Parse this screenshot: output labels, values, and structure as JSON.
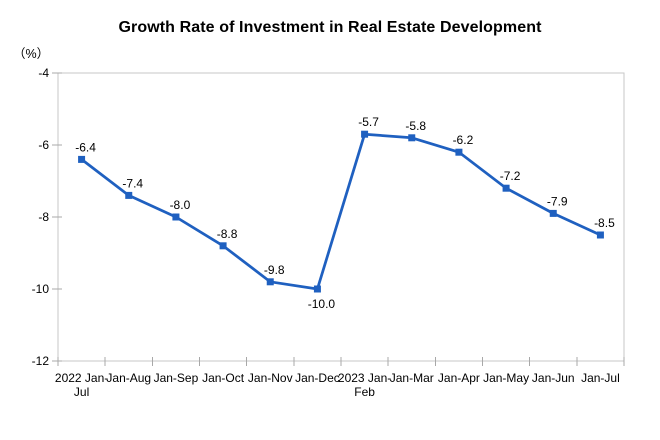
{
  "chart_data": {
    "type": "line",
    "title": "Growth Rate of Investment in Real Estate Development",
    "ylabel": "（%）",
    "xlabel": "",
    "categories": [
      [
        "2022 Jan-",
        "Jul"
      ],
      [
        "Jan-Aug"
      ],
      [
        "Jan-Sep"
      ],
      [
        "Jan-Oct"
      ],
      [
        "Jan-Nov"
      ],
      [
        "Jan-Dec"
      ],
      [
        "2023 Jan-",
        "Feb"
      ],
      [
        "Jan-Mar"
      ],
      [
        "Jan-Apr"
      ],
      [
        "Jan-May"
      ],
      [
        "Jan-Jun"
      ],
      [
        "Jan-Jul"
      ]
    ],
    "values": [
      -6.4,
      -7.4,
      -8.0,
      -8.8,
      -9.8,
      -10.0,
      -5.7,
      -5.8,
      -6.2,
      -7.2,
      -7.9,
      -8.5
    ],
    "point_labels": [
      "-6.4",
      "-7.4",
      "-8.0",
      "-8.8",
      "-9.8",
      "-10.0",
      "-5.7",
      "-5.8",
      "-6.2",
      "-7.2",
      "-7.9",
      "-8.5"
    ],
    "label_positions": [
      "above",
      "above",
      "above",
      "above",
      "above",
      "below",
      "above",
      "above",
      "above",
      "above",
      "above",
      "above"
    ],
    "yticks": [
      "-4",
      "-6",
      "-8",
      "-10",
      "-12"
    ],
    "ylim": [
      -12,
      -4
    ],
    "grid": false,
    "legend": "none",
    "marker": "square",
    "colors": {
      "line": "#1F60C0",
      "axis": "#c7c7c7",
      "tick": "#a8a8a8",
      "text": "#000000"
    }
  }
}
